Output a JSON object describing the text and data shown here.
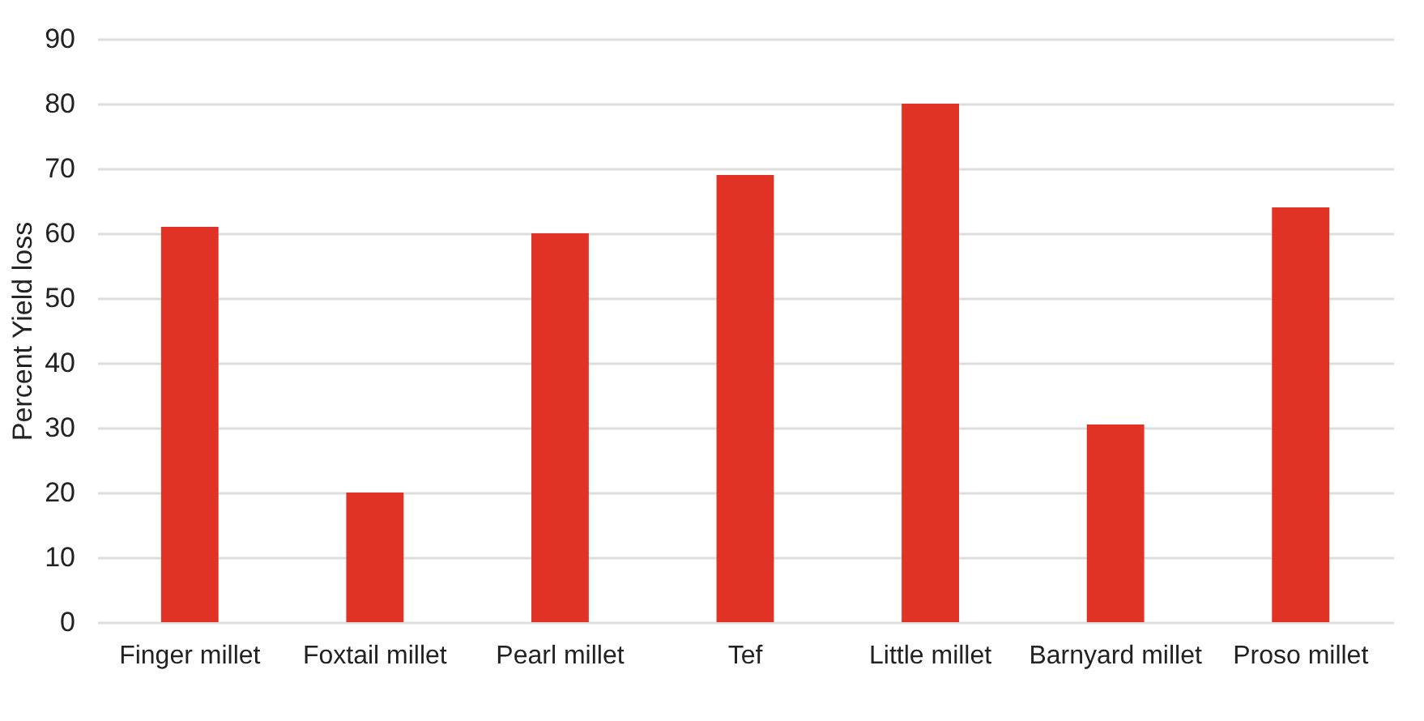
{
  "chart_data": {
    "type": "bar",
    "ylabel": "Percent Yield loss",
    "categories": [
      "Finger millet",
      "Foxtail millet",
      "Pearl millet",
      "Tef",
      "Little millet",
      "Barnyard millet",
      "Proso millet"
    ],
    "values": [
      61,
      20,
      60,
      69,
      80,
      30.5,
      64
    ],
    "color": "#e03326",
    "ylim": [
      0,
      90
    ],
    "yticks": [
      0,
      10,
      20,
      30,
      40,
      50,
      60,
      70,
      80,
      90
    ],
    "grid": "y"
  }
}
